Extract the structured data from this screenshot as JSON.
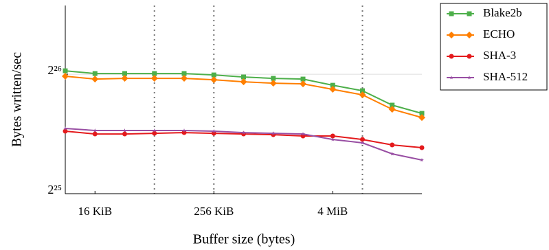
{
  "chart_data": {
    "type": "line",
    "xlabel": "Buffer size (bytes)",
    "ylabel": "Bytes written/sec",
    "x": [
      8192,
      16384,
      32768,
      65536,
      131072,
      262144,
      524288,
      1048576,
      2097152,
      4194304,
      8388608,
      16777216,
      33554432
    ],
    "series": [
      {
        "name": "Blake2b",
        "color": "#4daf4a",
        "marker": "square",
        "values": [
          68460000,
          67380000,
          67380000,
          67380000,
          67380000,
          66840000,
          66050000,
          65530000,
          65260000,
          62950000,
          60980000,
          56100000,
          53470000
        ]
      },
      {
        "name": "ECHO",
        "color": "#ff7f00",
        "marker": "diamond",
        "values": [
          66320000,
          65260000,
          65530000,
          65530000,
          65530000,
          65000000,
          64220000,
          63720000,
          63460000,
          61480000,
          59550000,
          54760000,
          52210000
        ]
      },
      {
        "name": "SHA-3",
        "color": "#e41a1c",
        "marker": "circle",
        "values": [
          48220000,
          47450000,
          47450000,
          47640000,
          47830000,
          47640000,
          47450000,
          47260000,
          46890000,
          46890000,
          45960000,
          44530000,
          43820000
        ]
      },
      {
        "name": "SHA-512",
        "color": "#984ea3",
        "marker": "star",
        "values": [
          48990000,
          48410000,
          48410000,
          48410000,
          48410000,
          48220000,
          47830000,
          47640000,
          47450000,
          45960000,
          45060000,
          42280000,
          40790000
        ]
      }
    ],
    "xscale": "log",
    "yscale": "log",
    "xlim": [
      8192,
      33554432
    ],
    "ylim": [
      33554432,
      100000000
    ],
    "xticks": [
      {
        "value": 16384,
        "label": "16 KiB"
      },
      {
        "value": 262144,
        "label": "256 KiB"
      },
      {
        "value": 4194304,
        "label": "4 MiB"
      }
    ],
    "yticks": [
      {
        "value": 33554432,
        "label": "2²⁵"
      },
      {
        "value": 67108864,
        "label": "2²⁶"
      }
    ],
    "vlines": [
      65536,
      262144,
      8388608
    ],
    "grid": true,
    "legend": "outside right"
  }
}
